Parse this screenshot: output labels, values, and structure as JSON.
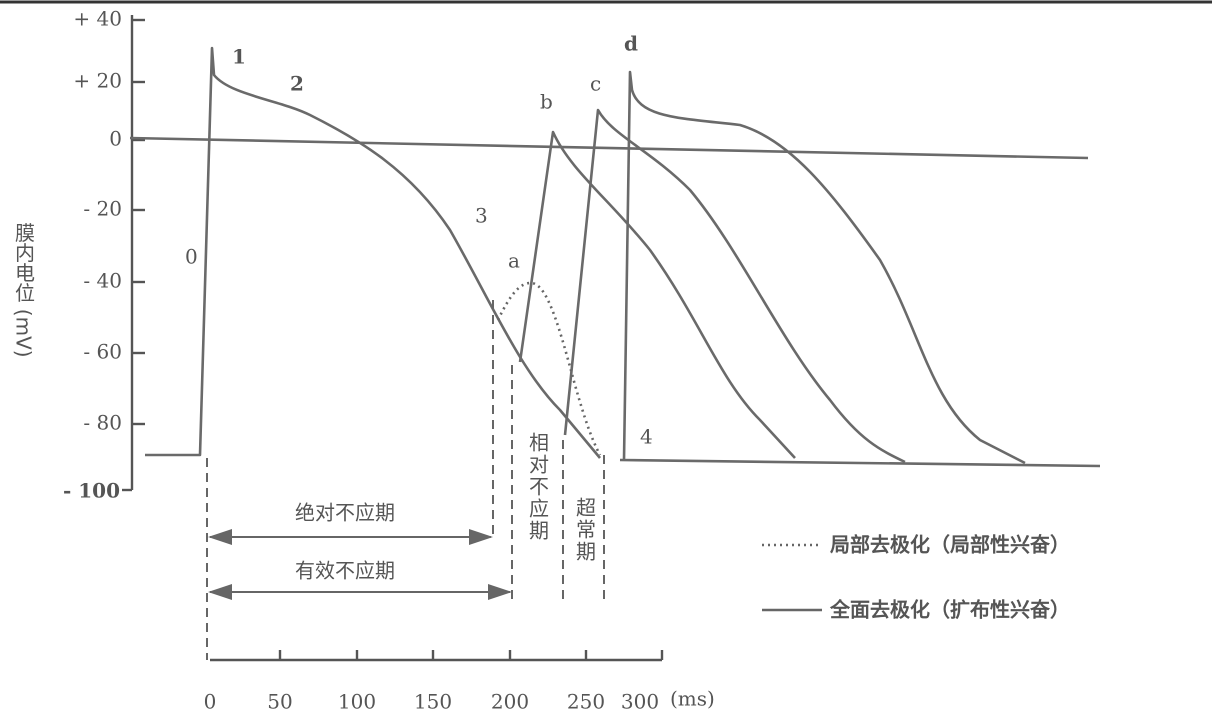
{
  "y_axis": {
    "label": "膜内电位 (mV)",
    "ticks": [
      "+ 40",
      "+ 20",
      "0",
      "- 20",
      "- 40",
      "- 60",
      "- 80",
      "- 100"
    ]
  },
  "x_axis": {
    "ticks": [
      "0",
      "50",
      "100",
      "150",
      "200",
      "250",
      "300"
    ],
    "unit": "(ms)"
  },
  "curve_labels": [
    "0",
    "1",
    "2",
    "3",
    "4",
    "a",
    "b",
    "c",
    "d"
  ],
  "periods": {
    "absolute": "绝对不应期",
    "effective": "有效不应期",
    "relative": "相对不应期",
    "supernormal": "超常期"
  },
  "legend": {
    "local": "局部去极化（局部性兴奋）",
    "spread": "全面去极化（扩布性兴奋）"
  }
}
